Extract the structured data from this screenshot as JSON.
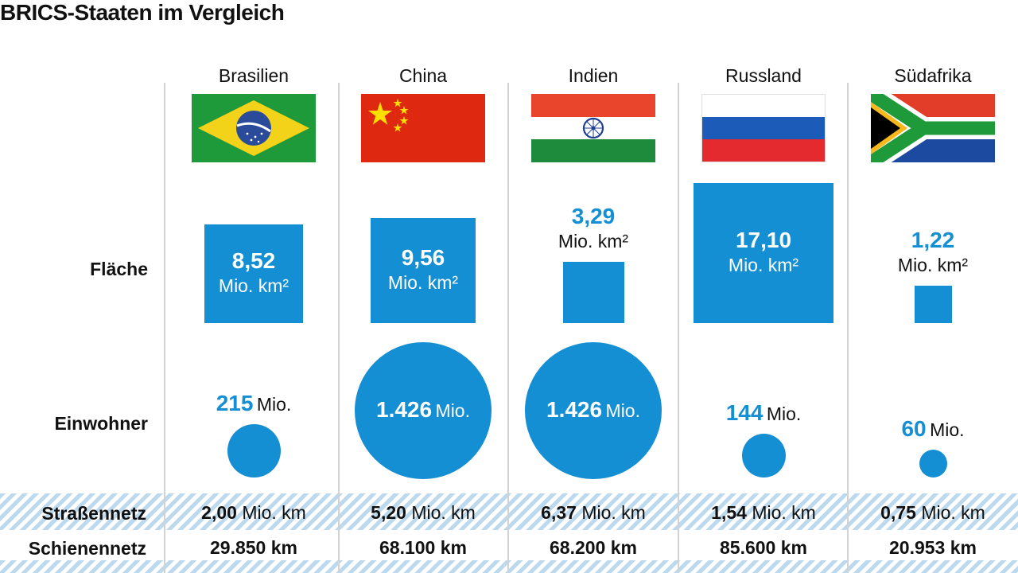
{
  "title": "BRICS-Staaten im Vergleich",
  "row_labels": {
    "area": "Fläche",
    "population": "Einwohner",
    "road": "Straßennetz",
    "rail": "Schienennetz"
  },
  "colors": {
    "accent": "#158fd3",
    "stripe": "#bcd9ee",
    "separator": "#d2d2d2"
  },
  "chart_data": {
    "type": "table",
    "title": "BRICS-Staaten im Vergleich",
    "countries": [
      {
        "name": "Brasilien",
        "flag": "brazil-flag",
        "area_value": "8,52",
        "area_unit": "Mio. km²",
        "area": 8.52,
        "pop_value": "215",
        "pop_unit": "Mio.",
        "population": 215,
        "road_value": "2,00",
        "road_unit": "Mio. km",
        "rail_value": "29.850",
        "rail_unit": "km"
      },
      {
        "name": "China",
        "flag": "china-flag",
        "area_value": "9,56",
        "area_unit": "Mio. km²",
        "area": 9.56,
        "pop_value": "1.426",
        "pop_unit": "Mio.",
        "population": 1426,
        "road_value": "5,20",
        "road_unit": "Mio. km",
        "rail_value": "68.100",
        "rail_unit": "km"
      },
      {
        "name": "Indien",
        "flag": "india-flag",
        "area_value": "3,29",
        "area_unit": "Mio. km²",
        "area": 3.29,
        "pop_value": "1.426",
        "pop_unit": "Mio.",
        "population": 1426,
        "road_value": "6,37",
        "road_unit": "Mio. km",
        "rail_value": "68.200",
        "rail_unit": "km"
      },
      {
        "name": "Russland",
        "flag": "russia-flag",
        "area_value": "17,10",
        "area_unit": "Mio. km²",
        "area": 17.1,
        "pop_value": "144",
        "pop_unit": "Mio.",
        "population": 144,
        "road_value": "1,54",
        "road_unit": "Mio. km",
        "rail_value": "85.600",
        "rail_unit": "km"
      },
      {
        "name": "Südafrika",
        "flag": "south-africa-flag",
        "area_value": "1,22",
        "area_unit": "Mio. km²",
        "area": 1.22,
        "pop_value": "60",
        "pop_unit": "Mio.",
        "population": 60,
        "road_value": "0,75",
        "road_unit": "Mio. km",
        "rail_value": "20.953",
        "rail_unit": "km"
      }
    ]
  }
}
